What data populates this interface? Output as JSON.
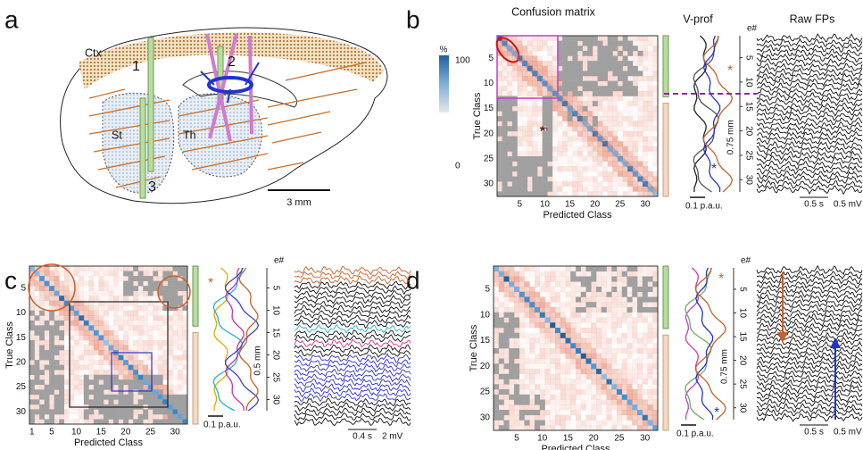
{
  "panel_a": {
    "label": "a",
    "regions": [
      "Ctx",
      "St",
      "Th"
    ],
    "probes": [
      "1",
      "2",
      "3"
    ],
    "scale_bar": "3 mm"
  },
  "panel_b": {
    "label": "b",
    "title": "Confusion matrix",
    "vprof_title": "V-prof",
    "raw_title": "Raw FPs",
    "colorbar": {
      "unit": "%",
      "max": 100,
      "min": 0
    },
    "y_label": "True Class",
    "x_label": "Predicted Class",
    "y_ticks": [
      5,
      10,
      15,
      20,
      25,
      30
    ],
    "x_ticks": [
      5,
      10,
      15,
      20,
      25,
      30
    ],
    "electrode_label": "e#",
    "e_ticks": [
      5,
      10,
      15,
      20,
      25,
      30
    ],
    "annotation": "**",
    "stars": [
      "*",
      "*"
    ],
    "depth_scale": "0.75 mm",
    "vprof_scale": "0.1 p.a.u.",
    "time_scale": "0.5 s",
    "volt_scale": "0.5 mV"
  },
  "panel_c": {
    "label": "c",
    "y_label": "True Class",
    "x_label": "Predicted Class",
    "y_ticks": [
      5,
      10,
      15,
      20,
      25,
      30
    ],
    "x_ticks": [
      1,
      5,
      10,
      15,
      20,
      25,
      30
    ],
    "electrode_label": "e#",
    "e_ticks": [
      5,
      10,
      15,
      20,
      25,
      30
    ],
    "stars": [
      "*"
    ],
    "depth_scale": "0.5 mm",
    "vprof_scale": "0.1 p.a.u.",
    "time_scale": "0.4 s",
    "volt_scale": "2 mV"
  },
  "panel_d": {
    "label": "d",
    "y_label": "True Class",
    "x_label": "Predicted Class",
    "y_ticks": [
      5,
      10,
      15,
      20,
      25,
      30
    ],
    "x_ticks": [
      5,
      10,
      15,
      20,
      25,
      30
    ],
    "electrode_label": "e#",
    "e_ticks": [
      5,
      10,
      15,
      20,
      25,
      30
    ],
    "stars": [
      "*",
      "*"
    ],
    "depth_scale": "0.75 mm",
    "vprof_scale": "0.1 p.a.u.",
    "time_scale": "0.5 s",
    "volt_scale": "0.5 mV"
  }
}
